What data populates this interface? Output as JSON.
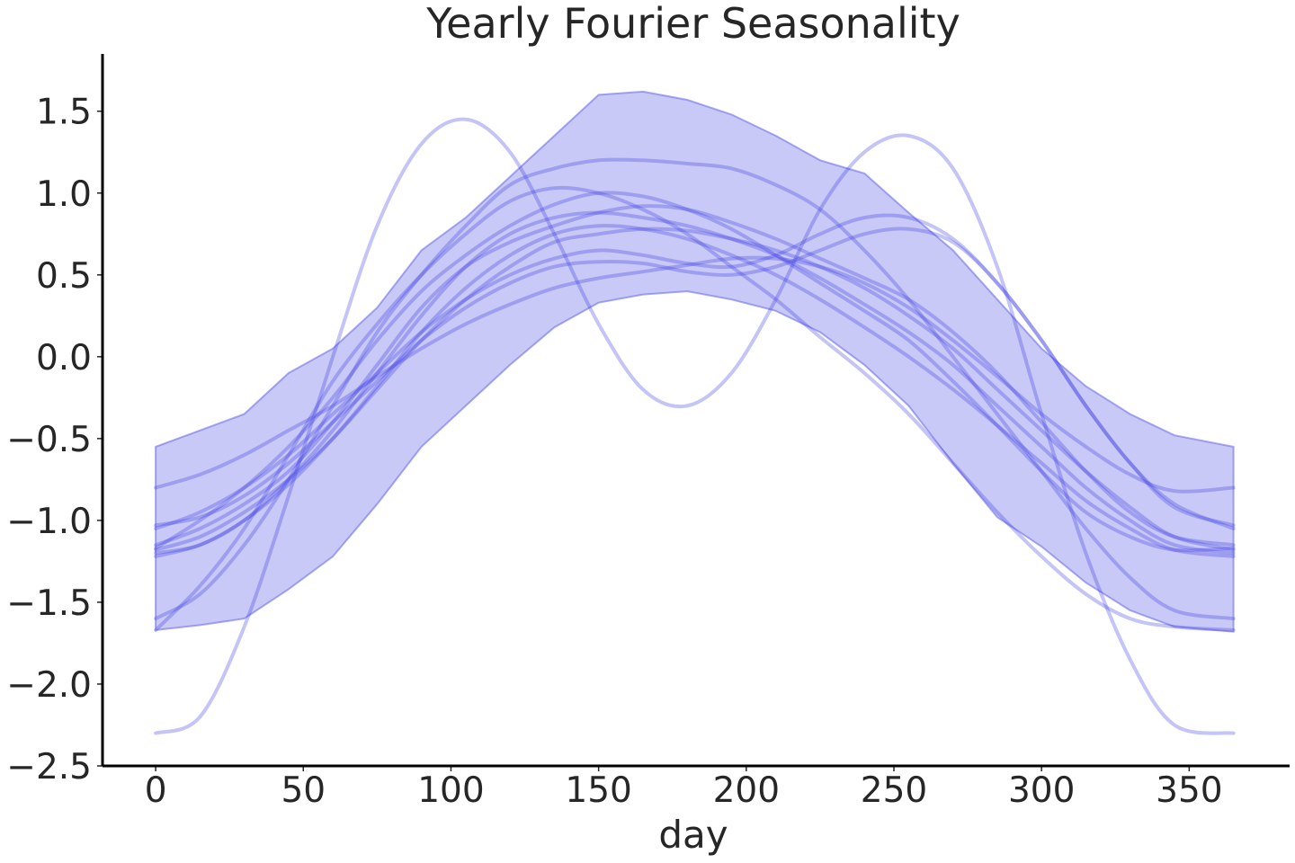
{
  "chart_data": {
    "type": "line",
    "title": "Yearly Fourier Seasonality",
    "xlabel": "day",
    "ylabel": "",
    "xlim": [
      -18,
      384
    ],
    "ylim": [
      -2.5,
      1.85
    ],
    "xticks": [
      0,
      50,
      100,
      150,
      200,
      250,
      300,
      350
    ],
    "xtick_labels": [
      "0",
      "50",
      "100",
      "150",
      "200",
      "250",
      "300",
      "350"
    ],
    "yticks": [
      1.5,
      1.0,
      0.5,
      0.0,
      -0.5,
      -1.0,
      -1.5,
      -2.0,
      -2.5
    ],
    "ytick_labels": [
      "1.5",
      "1.0",
      "0.5",
      "0.0",
      "−0.5",
      "−1.0",
      "−1.5",
      "−2.0",
      "−2.5"
    ],
    "grid": false,
    "colors": {
      "band_fill": "#5a5ae8",
      "band_opacity": 0.33,
      "line": "#3b3be6",
      "line_opacity": 0.3
    },
    "band": {
      "x": [
        0,
        15,
        30,
        45,
        60,
        75,
        90,
        105,
        120,
        135,
        150,
        165,
        180,
        195,
        210,
        225,
        240,
        255,
        270,
        285,
        300,
        315,
        330,
        345,
        365
      ],
      "lower": [
        -1.67,
        -1.64,
        -1.6,
        -1.42,
        -1.22,
        -0.9,
        -0.55,
        -0.3,
        -0.05,
        0.18,
        0.33,
        0.38,
        0.4,
        0.35,
        0.28,
        0.15,
        -0.05,
        -0.3,
        -0.65,
        -0.98,
        -1.16,
        -1.38,
        -1.55,
        -1.65,
        -1.68
      ],
      "upper": [
        -0.55,
        -0.45,
        -0.35,
        -0.1,
        0.05,
        0.3,
        0.65,
        0.85,
        1.1,
        1.35,
        1.6,
        1.62,
        1.57,
        1.48,
        1.35,
        1.2,
        1.12,
        0.88,
        0.65,
        0.35,
        0.05,
        -0.18,
        -0.35,
        -0.48,
        -0.55
      ]
    },
    "series": [
      {
        "x": [
          0,
          15,
          30,
          45,
          60,
          75,
          90,
          105,
          120,
          135,
          150,
          165,
          180,
          195,
          210,
          225,
          240,
          255,
          270,
          285,
          300,
          315,
          330,
          345,
          365
        ],
        "values": [
          -2.3,
          -2.2,
          -1.65,
          -0.85,
          0.0,
          0.8,
          1.3,
          1.45,
          1.25,
          0.75,
          0.2,
          -0.2,
          -0.3,
          -0.1,
          0.35,
          0.9,
          1.25,
          1.35,
          1.15,
          0.55,
          -0.35,
          -1.2,
          -1.85,
          -2.25,
          -2.3
        ]
      },
      {
        "x": [
          0,
          15,
          30,
          45,
          60,
          75,
          90,
          105,
          120,
          135,
          150,
          165,
          180,
          195,
          210,
          225,
          240,
          255,
          270,
          285,
          300,
          315,
          330,
          345,
          365
        ],
        "values": [
          -1.67,
          -1.4,
          -1.05,
          -0.6,
          -0.15,
          0.2,
          0.5,
          0.75,
          0.95,
          1.03,
          1.0,
          0.9,
          0.75,
          0.55,
          0.35,
          0.12,
          -0.1,
          -0.35,
          -0.65,
          -0.95,
          -1.22,
          -1.45,
          -1.6,
          -1.65,
          -1.67
        ]
      },
      {
        "x": [
          0,
          15,
          30,
          45,
          60,
          75,
          90,
          105,
          120,
          135,
          150,
          165,
          180,
          195,
          210,
          225,
          240,
          255,
          270,
          285,
          300,
          315,
          330,
          345,
          365
        ],
        "values": [
          -1.6,
          -1.45,
          -1.15,
          -0.75,
          -0.3,
          0.15,
          0.5,
          0.8,
          1.05,
          1.15,
          1.2,
          1.2,
          1.18,
          1.15,
          1.05,
          0.9,
          0.65,
          0.35,
          0.0,
          -0.35,
          -0.7,
          -1.05,
          -1.35,
          -1.55,
          -1.6
        ]
      },
      {
        "x": [
          0,
          15,
          30,
          45,
          60,
          75,
          90,
          105,
          120,
          135,
          150,
          165,
          180,
          195,
          210,
          225,
          240,
          255,
          270,
          285,
          300,
          315,
          330,
          345,
          365
        ],
        "values": [
          -1.2,
          -1.15,
          -1.0,
          -0.75,
          -0.45,
          -0.1,
          0.25,
          0.55,
          0.75,
          0.85,
          0.88,
          0.85,
          0.8,
          0.72,
          0.62,
          0.48,
          0.32,
          0.15,
          -0.05,
          -0.3,
          -0.55,
          -0.8,
          -1.0,
          -1.15,
          -1.2
        ]
      },
      {
        "x": [
          0,
          15,
          30,
          45,
          60,
          75,
          90,
          105,
          120,
          135,
          150,
          165,
          180,
          195,
          210,
          225,
          240,
          255,
          270,
          285,
          300,
          315,
          330,
          345,
          365
        ],
        "values": [
          -1.15,
          -1.05,
          -0.9,
          -0.7,
          -0.4,
          -0.05,
          0.3,
          0.55,
          0.7,
          0.8,
          0.88,
          0.92,
          0.9,
          0.82,
          0.72,
          0.6,
          0.48,
          0.35,
          0.15,
          -0.1,
          -0.4,
          -0.7,
          -0.95,
          -1.1,
          -1.15
        ]
      },
      {
        "x": [
          0,
          15,
          30,
          45,
          60,
          75,
          90,
          105,
          120,
          135,
          150,
          165,
          180,
          195,
          210,
          225,
          240,
          255,
          270,
          285,
          300,
          315,
          330,
          345,
          365
        ],
        "values": [
          -1.05,
          -0.95,
          -0.8,
          -0.6,
          -0.35,
          -0.1,
          0.15,
          0.35,
          0.5,
          0.6,
          0.65,
          0.62,
          0.57,
          0.55,
          0.62,
          0.75,
          0.85,
          0.85,
          0.72,
          0.45,
          0.1,
          -0.3,
          -0.65,
          -0.9,
          -1.05
        ]
      },
      {
        "x": [
          0,
          15,
          30,
          45,
          60,
          75,
          90,
          105,
          120,
          135,
          150,
          165,
          180,
          195,
          210,
          225,
          240,
          255,
          270,
          285,
          300,
          315,
          330,
          345,
          365
        ],
        "values": [
          -1.03,
          -0.98,
          -0.85,
          -0.65,
          -0.4,
          -0.15,
          0.1,
          0.3,
          0.45,
          0.55,
          0.58,
          0.57,
          0.52,
          0.5,
          0.55,
          0.65,
          0.75,
          0.78,
          0.7,
          0.45,
          0.1,
          -0.3,
          -0.65,
          -0.92,
          -1.03
        ]
      },
      {
        "x": [
          0,
          15,
          30,
          45,
          60,
          75,
          90,
          105,
          120,
          135,
          150,
          165,
          180,
          195,
          210,
          225,
          240,
          255,
          270,
          285,
          300,
          315,
          330,
          345,
          365
        ],
        "values": [
          -0.8,
          -0.72,
          -0.6,
          -0.45,
          -0.3,
          -0.12,
          0.05,
          0.2,
          0.32,
          0.42,
          0.48,
          0.52,
          0.56,
          0.6,
          0.6,
          0.55,
          0.45,
          0.3,
          0.1,
          -0.12,
          -0.35,
          -0.55,
          -0.72,
          -0.82,
          -0.8
        ]
      },
      {
        "x": [
          0,
          15,
          30,
          45,
          60,
          75,
          90,
          105,
          120,
          135,
          150,
          165,
          180,
          195,
          210,
          225,
          240,
          255,
          270,
          285,
          300,
          315,
          330,
          345,
          365
        ],
        "values": [
          -1.18,
          -1.1,
          -0.95,
          -0.75,
          -0.5,
          -0.2,
          0.1,
          0.35,
          0.55,
          0.7,
          0.75,
          0.78,
          0.77,
          0.72,
          0.65,
          0.55,
          0.42,
          0.25,
          0.05,
          -0.2,
          -0.45,
          -0.7,
          -0.92,
          -1.1,
          -1.18
        ]
      },
      {
        "x": [
          0,
          15,
          30,
          45,
          60,
          75,
          90,
          105,
          120,
          135,
          150,
          165,
          180,
          195,
          210,
          225,
          240,
          255,
          270,
          285,
          300,
          315,
          330,
          345,
          365
        ],
        "values": [
          -1.22,
          -1.15,
          -1.0,
          -0.78,
          -0.5,
          -0.18,
          0.15,
          0.42,
          0.62,
          0.75,
          0.8,
          0.78,
          0.72,
          0.62,
          0.5,
          0.35,
          0.18,
          0.0,
          -0.2,
          -0.42,
          -0.65,
          -0.88,
          -1.05,
          -1.18,
          -1.22
        ]
      },
      {
        "x": [
          0,
          15,
          30,
          45,
          60,
          75,
          90,
          105,
          120,
          135,
          150,
          165,
          180,
          195,
          210,
          225,
          240,
          255,
          270,
          285,
          300,
          315,
          330,
          345,
          365
        ],
        "values": [
          -1.17,
          -1.0,
          -0.8,
          -0.55,
          -0.25,
          0.1,
          0.4,
          0.62,
          0.8,
          0.93,
          1.0,
          0.98,
          0.9,
          0.78,
          0.62,
          0.45,
          0.28,
          0.1,
          -0.15,
          -0.42,
          -0.7,
          -0.95,
          -1.1,
          -1.18,
          -1.17
        ]
      }
    ]
  }
}
